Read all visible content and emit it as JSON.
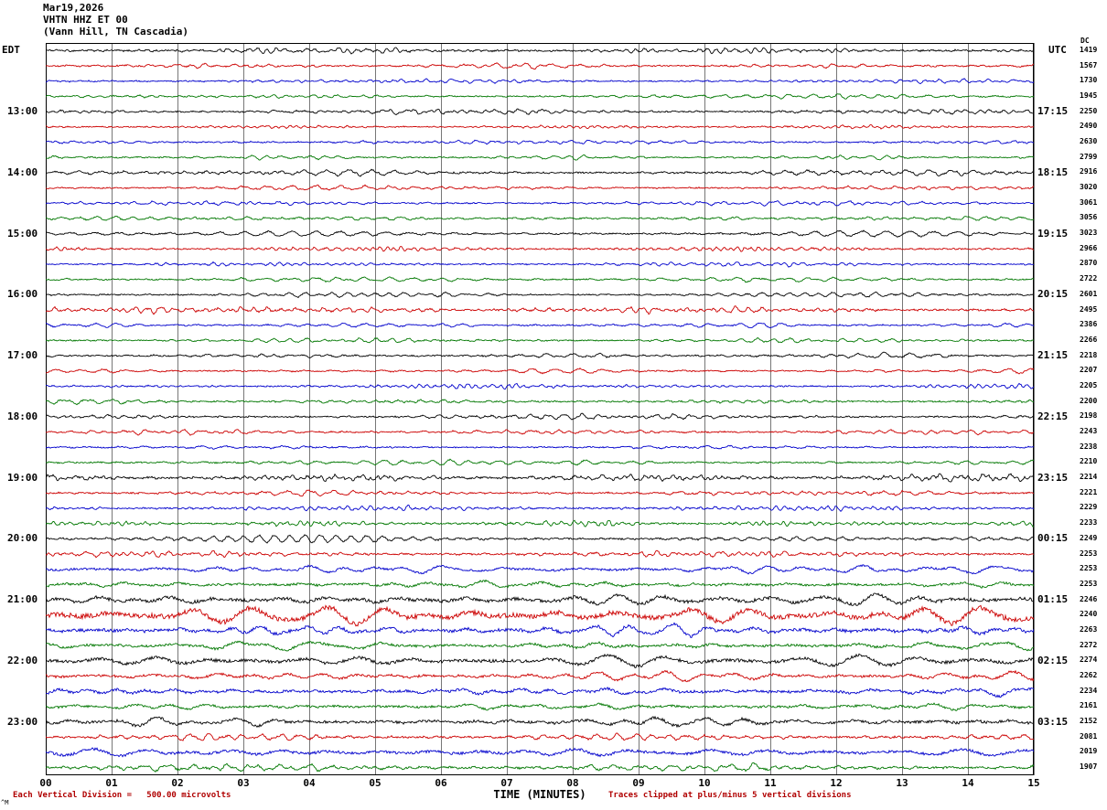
{
  "header": {
    "date": "Mar19,2026",
    "station": "VHTN HHZ ET 00",
    "location": "(Vann Hill, TN Cascadia)"
  },
  "axes": {
    "left_header": "EDT",
    "right_header": "UTC",
    "dc_header": "DC"
  },
  "footer": {
    "left": "Each Vertical Division =   500.00 microvolts",
    "center": "TIME (MINUTES)",
    "right": "Traces clipped at plus/minus 5 vertical divisions",
    "artifact": "^M"
  },
  "chart_data": {
    "type": "line",
    "variant": "helicorder-seismogram",
    "title": "Mar19,2026 VHTN HHZ ET 00 (Vann Hill, TN Cascadia)",
    "xlabel": "TIME (MINUTES)",
    "x_range_minutes": [
      0,
      15
    ],
    "x_ticks": [
      "00",
      "01",
      "02",
      "03",
      "04",
      "05",
      "06",
      "07",
      "08",
      "09",
      "10",
      "11",
      "12",
      "13",
      "14",
      "15"
    ],
    "num_rows": 48,
    "minutes_per_row": 15,
    "trace_color_cycle": [
      "#000000",
      "#cc0000",
      "#0000cc",
      "#007700"
    ],
    "grid": "vertical-minute-lines",
    "microvolts_per_division": "500.00",
    "clip_divisions": 5,
    "left_time_labels": [
      {
        "row": 4,
        "label": "13:00"
      },
      {
        "row": 8,
        "label": "14:00"
      },
      {
        "row": 12,
        "label": "15:00"
      },
      {
        "row": 16,
        "label": "16:00"
      },
      {
        "row": 20,
        "label": "17:00"
      },
      {
        "row": 24,
        "label": "18:00"
      },
      {
        "row": 28,
        "label": "19:00"
      },
      {
        "row": 32,
        "label": "20:00"
      },
      {
        "row": 36,
        "label": "21:00"
      },
      {
        "row": 40,
        "label": "22:00"
      },
      {
        "row": 44,
        "label": "23:00"
      }
    ],
    "right_time_labels": [
      {
        "row": 4,
        "label": "17:15"
      },
      {
        "row": 8,
        "label": "18:15"
      },
      {
        "row": 12,
        "label": "19:15"
      },
      {
        "row": 16,
        "label": "20:15"
      },
      {
        "row": 20,
        "label": "21:15"
      },
      {
        "row": 24,
        "label": "22:15"
      },
      {
        "row": 28,
        "label": "23:15"
      },
      {
        "row": 32,
        "label": "00:15"
      },
      {
        "row": 36,
        "label": "01:15"
      },
      {
        "row": 40,
        "label": "02:15"
      },
      {
        "row": 44,
        "label": "03:15"
      }
    ],
    "dc_values": [
      1419,
      1567,
      1730,
      1945,
      2250,
      2490,
      2630,
      2799,
      2916,
      3020,
      3061,
      3056,
      3023,
      2966,
      2870,
      2722,
      2601,
      2495,
      2386,
      2266,
      2218,
      2207,
      2205,
      2200,
      2198,
      2243,
      2238,
      2210,
      2214,
      2221,
      2229,
      2233,
      2249,
      2253,
      2253,
      2253,
      2246,
      2240,
      2263,
      2272,
      2274,
      2262,
      2234,
      2161,
      2152,
      2081,
      2019,
      1907
    ],
    "row_amplitudes": [
      2.0,
      1.8,
      1.5,
      1.5,
      1.8,
      1.5,
      1.6,
      1.5,
      2.0,
      1.6,
      1.5,
      1.8,
      1.8,
      1.7,
      1.5,
      1.6,
      1.6,
      2.2,
      1.7,
      1.6,
      1.8,
      1.6,
      1.6,
      1.9,
      1.8,
      1.7,
      1.6,
      1.8,
      2.4,
      1.9,
      1.8,
      2.0,
      2.2,
      2.0,
      2.8,
      3.0,
      4.5,
      6.5,
      4.0,
      3.2,
      4.2,
      3.2,
      3.4,
      2.9,
      3.6,
      2.4,
      3.6,
      2.6
    ],
    "bursts": [
      {
        "row": 17,
        "minute": 5.2,
        "gain": 2.2
      },
      {
        "row": 34,
        "minute": 10.2,
        "gain": 2.0
      },
      {
        "row": 37,
        "minute": 9.6,
        "gain": 1.4
      },
      {
        "row": 40,
        "minute": 3.0,
        "gain": 1.3
      }
    ]
  }
}
